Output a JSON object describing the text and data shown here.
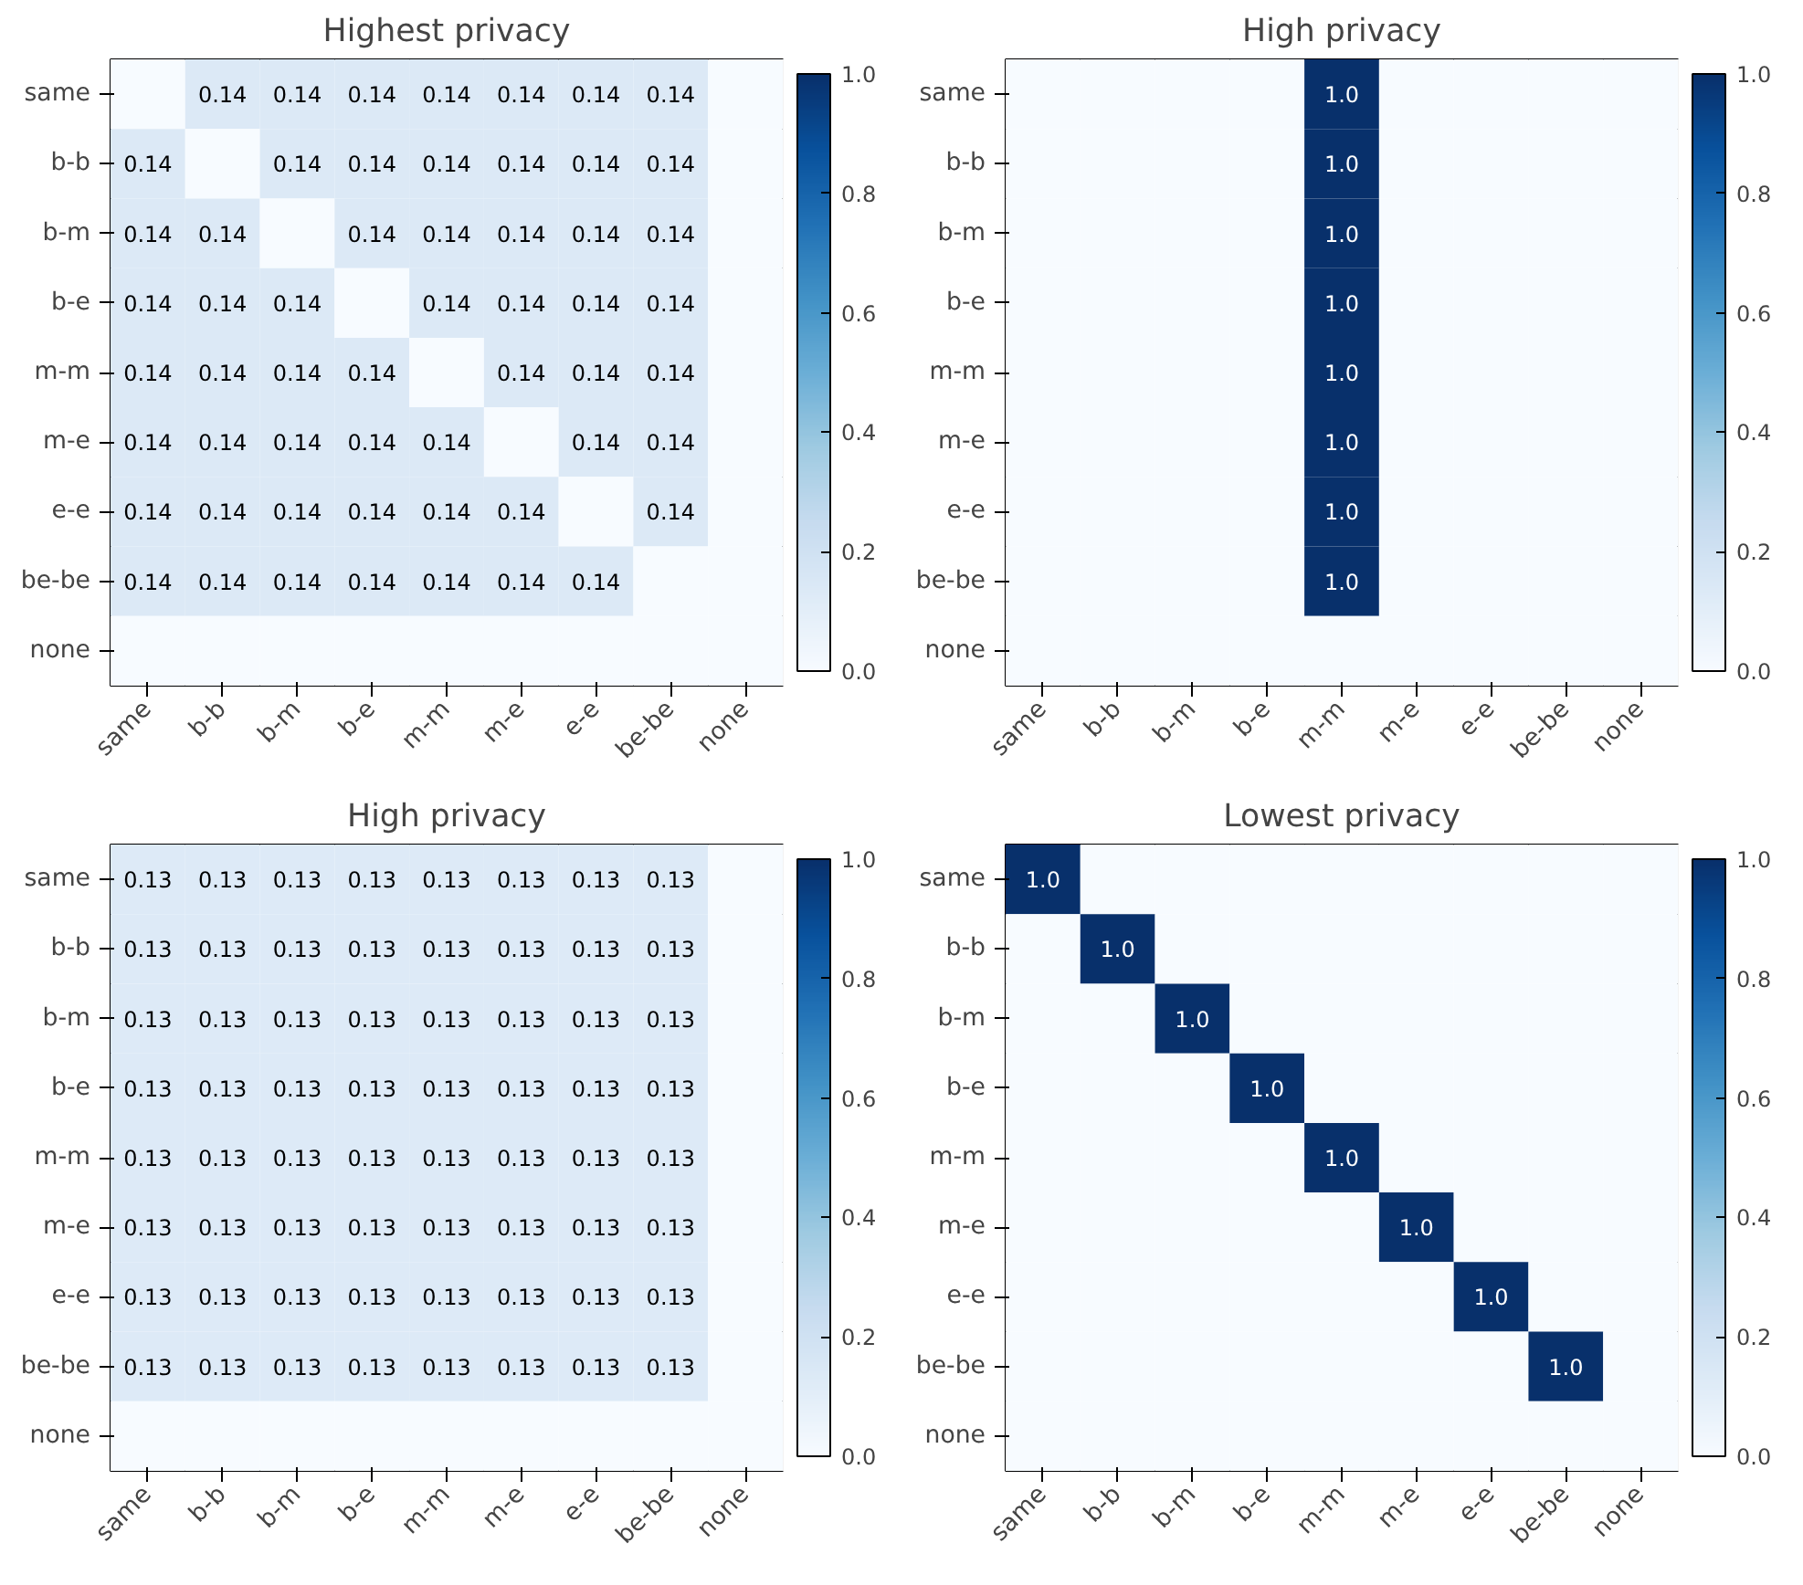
{
  "chart_data": [
    {
      "type": "heatmap",
      "title": "Highest privacy",
      "categories": [
        "same",
        "b-b",
        "b-m",
        "b-e",
        "m-m",
        "m-e",
        "e-e",
        "be-be",
        "none"
      ],
      "y_categories": [
        "same",
        "b-b",
        "b-m",
        "b-e",
        "m-m",
        "m-e",
        "e-e",
        "be-be",
        "none"
      ],
      "cells": [
        [
          0,
          0.14,
          0.14,
          0.14,
          0.14,
          0.14,
          0.14,
          0.14,
          0
        ],
        [
          0.14,
          0,
          0.14,
          0.14,
          0.14,
          0.14,
          0.14,
          0.14,
          0
        ],
        [
          0.14,
          0.14,
          0,
          0.14,
          0.14,
          0.14,
          0.14,
          0.14,
          0
        ],
        [
          0.14,
          0.14,
          0.14,
          0,
          0.14,
          0.14,
          0.14,
          0.14,
          0
        ],
        [
          0.14,
          0.14,
          0.14,
          0.14,
          0,
          0.14,
          0.14,
          0.14,
          0
        ],
        [
          0.14,
          0.14,
          0.14,
          0.14,
          0.14,
          0,
          0.14,
          0.14,
          0
        ],
        [
          0.14,
          0.14,
          0.14,
          0.14,
          0.14,
          0.14,
          0,
          0.14,
          0
        ],
        [
          0.14,
          0.14,
          0.14,
          0.14,
          0.14,
          0.14,
          0.14,
          0,
          0
        ],
        [
          0,
          0,
          0,
          0,
          0,
          0,
          0,
          0,
          0
        ]
      ],
      "cell_labels": [
        [
          null,
          "0.14",
          "0.14",
          "0.14",
          "0.14",
          "0.14",
          "0.14",
          "0.14",
          null
        ],
        [
          "0.14",
          null,
          "0.14",
          "0.14",
          "0.14",
          "0.14",
          "0.14",
          "0.14",
          null
        ],
        [
          "0.14",
          "0.14",
          null,
          "0.14",
          "0.14",
          "0.14",
          "0.14",
          "0.14",
          null
        ],
        [
          "0.14",
          "0.14",
          "0.14",
          null,
          "0.14",
          "0.14",
          "0.14",
          "0.14",
          null
        ],
        [
          "0.14",
          "0.14",
          "0.14",
          "0.14",
          null,
          "0.14",
          "0.14",
          "0.14",
          null
        ],
        [
          "0.14",
          "0.14",
          "0.14",
          "0.14",
          "0.14",
          null,
          "0.14",
          "0.14",
          null
        ],
        [
          "0.14",
          "0.14",
          "0.14",
          "0.14",
          "0.14",
          "0.14",
          null,
          "0.14",
          null
        ],
        [
          "0.14",
          "0.14",
          "0.14",
          "0.14",
          "0.14",
          "0.14",
          "0.14",
          null,
          null
        ],
        [
          null,
          null,
          null,
          null,
          null,
          null,
          null,
          null,
          null
        ]
      ],
      "clim": [
        0,
        1
      ],
      "cticks": [
        {
          "value": 0,
          "label": "0.0"
        },
        {
          "value": 0.2,
          "label": "0.2"
        },
        {
          "value": 0.4,
          "label": "0.4"
        },
        {
          "value": 0.6,
          "label": "0.6"
        },
        {
          "value": 0.8,
          "label": "0.8"
        },
        {
          "value": 1,
          "label": "1.0"
        }
      ]
    },
    {
      "type": "heatmap",
      "title": "High privacy",
      "categories": [
        "same",
        "b-b",
        "b-m",
        "b-e",
        "m-m",
        "m-e",
        "e-e",
        "be-be",
        "none"
      ],
      "y_categories": [
        "same",
        "b-b",
        "b-m",
        "b-e",
        "m-m",
        "m-e",
        "e-e",
        "be-be",
        "none"
      ],
      "cells": [
        [
          0,
          0,
          0,
          0,
          1,
          0,
          0,
          0,
          0
        ],
        [
          0,
          0,
          0,
          0,
          1,
          0,
          0,
          0,
          0
        ],
        [
          0,
          0,
          0,
          0,
          1,
          0,
          0,
          0,
          0
        ],
        [
          0,
          0,
          0,
          0,
          1,
          0,
          0,
          0,
          0
        ],
        [
          0,
          0,
          0,
          0,
          1,
          0,
          0,
          0,
          0
        ],
        [
          0,
          0,
          0,
          0,
          1,
          0,
          0,
          0,
          0
        ],
        [
          0,
          0,
          0,
          0,
          1,
          0,
          0,
          0,
          0
        ],
        [
          0,
          0,
          0,
          0,
          1,
          0,
          0,
          0,
          0
        ],
        [
          0,
          0,
          0,
          0,
          0,
          0,
          0,
          0,
          0
        ]
      ],
      "cell_labels": [
        [
          null,
          null,
          null,
          null,
          "1.0",
          null,
          null,
          null,
          null
        ],
        [
          null,
          null,
          null,
          null,
          "1.0",
          null,
          null,
          null,
          null
        ],
        [
          null,
          null,
          null,
          null,
          "1.0",
          null,
          null,
          null,
          null
        ],
        [
          null,
          null,
          null,
          null,
          "1.0",
          null,
          null,
          null,
          null
        ],
        [
          null,
          null,
          null,
          null,
          "1.0",
          null,
          null,
          null,
          null
        ],
        [
          null,
          null,
          null,
          null,
          "1.0",
          null,
          null,
          null,
          null
        ],
        [
          null,
          null,
          null,
          null,
          "1.0",
          null,
          null,
          null,
          null
        ],
        [
          null,
          null,
          null,
          null,
          "1.0",
          null,
          null,
          null,
          null
        ],
        [
          null,
          null,
          null,
          null,
          null,
          null,
          null,
          null,
          null
        ]
      ],
      "clim": [
        0,
        1
      ],
      "cticks": [
        {
          "value": 0,
          "label": "0.0"
        },
        {
          "value": 0.2,
          "label": "0.2"
        },
        {
          "value": 0.4,
          "label": "0.4"
        },
        {
          "value": 0.6,
          "label": "0.6"
        },
        {
          "value": 0.8,
          "label": "0.8"
        },
        {
          "value": 1,
          "label": "1.0"
        }
      ]
    },
    {
      "type": "heatmap",
      "title": "High privacy",
      "categories": [
        "same",
        "b-b",
        "b-m",
        "b-e",
        "m-m",
        "m-e",
        "e-e",
        "be-be",
        "none"
      ],
      "y_categories": [
        "same",
        "b-b",
        "b-m",
        "b-e",
        "m-m",
        "m-e",
        "e-e",
        "be-be",
        "none"
      ],
      "cells": [
        [
          0.13,
          0.13,
          0.13,
          0.13,
          0.13,
          0.13,
          0.13,
          0.13,
          0
        ],
        [
          0.13,
          0.13,
          0.13,
          0.13,
          0.13,
          0.13,
          0.13,
          0.13,
          0
        ],
        [
          0.13,
          0.13,
          0.13,
          0.13,
          0.13,
          0.13,
          0.13,
          0.13,
          0
        ],
        [
          0.13,
          0.13,
          0.13,
          0.13,
          0.13,
          0.13,
          0.13,
          0.13,
          0
        ],
        [
          0.13,
          0.13,
          0.13,
          0.13,
          0.13,
          0.13,
          0.13,
          0.13,
          0
        ],
        [
          0.13,
          0.13,
          0.13,
          0.13,
          0.13,
          0.13,
          0.13,
          0.13,
          0
        ],
        [
          0.13,
          0.13,
          0.13,
          0.13,
          0.13,
          0.13,
          0.13,
          0.13,
          0
        ],
        [
          0.13,
          0.13,
          0.13,
          0.13,
          0.13,
          0.13,
          0.13,
          0.13,
          0
        ],
        [
          0,
          0,
          0,
          0,
          0,
          0,
          0,
          0,
          0
        ]
      ],
      "cell_labels": [
        [
          "0.13",
          "0.13",
          "0.13",
          "0.13",
          "0.13",
          "0.13",
          "0.13",
          "0.13",
          null
        ],
        [
          "0.13",
          "0.13",
          "0.13",
          "0.13",
          "0.13",
          "0.13",
          "0.13",
          "0.13",
          null
        ],
        [
          "0.13",
          "0.13",
          "0.13",
          "0.13",
          "0.13",
          "0.13",
          "0.13",
          "0.13",
          null
        ],
        [
          "0.13",
          "0.13",
          "0.13",
          "0.13",
          "0.13",
          "0.13",
          "0.13",
          "0.13",
          null
        ],
        [
          "0.13",
          "0.13",
          "0.13",
          "0.13",
          "0.13",
          "0.13",
          "0.13",
          "0.13",
          null
        ],
        [
          "0.13",
          "0.13",
          "0.13",
          "0.13",
          "0.13",
          "0.13",
          "0.13",
          "0.13",
          null
        ],
        [
          "0.13",
          "0.13",
          "0.13",
          "0.13",
          "0.13",
          "0.13",
          "0.13",
          "0.13",
          null
        ],
        [
          "0.13",
          "0.13",
          "0.13",
          "0.13",
          "0.13",
          "0.13",
          "0.13",
          "0.13",
          null
        ],
        [
          null,
          null,
          null,
          null,
          null,
          null,
          null,
          null,
          null
        ]
      ],
      "clim": [
        0,
        1
      ],
      "cticks": [
        {
          "value": 0,
          "label": "0.0"
        },
        {
          "value": 0.2,
          "label": "0.2"
        },
        {
          "value": 0.4,
          "label": "0.4"
        },
        {
          "value": 0.6,
          "label": "0.6"
        },
        {
          "value": 0.8,
          "label": "0.8"
        },
        {
          "value": 1,
          "label": "1.0"
        }
      ]
    },
    {
      "type": "heatmap",
      "title": "Lowest privacy",
      "categories": [
        "same",
        "b-b",
        "b-m",
        "b-e",
        "m-m",
        "m-e",
        "e-e",
        "be-be",
        "none"
      ],
      "y_categories": [
        "same",
        "b-b",
        "b-m",
        "b-e",
        "m-m",
        "m-e",
        "e-e",
        "be-be",
        "none"
      ],
      "cells": [
        [
          1,
          0,
          0,
          0,
          0,
          0,
          0,
          0,
          0
        ],
        [
          0,
          1,
          0,
          0,
          0,
          0,
          0,
          0,
          0
        ],
        [
          0,
          0,
          1,
          0,
          0,
          0,
          0,
          0,
          0
        ],
        [
          0,
          0,
          0,
          1,
          0,
          0,
          0,
          0,
          0
        ],
        [
          0,
          0,
          0,
          0,
          1,
          0,
          0,
          0,
          0
        ],
        [
          0,
          0,
          0,
          0,
          0,
          1,
          0,
          0,
          0
        ],
        [
          0,
          0,
          0,
          0,
          0,
          0,
          1,
          0,
          0
        ],
        [
          0,
          0,
          0,
          0,
          0,
          0,
          0,
          1,
          0
        ],
        [
          0,
          0,
          0,
          0,
          0,
          0,
          0,
          0,
          0
        ]
      ],
      "cell_labels": [
        [
          "1.0",
          null,
          null,
          null,
          null,
          null,
          null,
          null,
          null
        ],
        [
          null,
          "1.0",
          null,
          null,
          null,
          null,
          null,
          null,
          null
        ],
        [
          null,
          null,
          "1.0",
          null,
          null,
          null,
          null,
          null,
          null
        ],
        [
          null,
          null,
          null,
          "1.0",
          null,
          null,
          null,
          null,
          null
        ],
        [
          null,
          null,
          null,
          null,
          "1.0",
          null,
          null,
          null,
          null
        ],
        [
          null,
          null,
          null,
          null,
          null,
          "1.0",
          null,
          null,
          null
        ],
        [
          null,
          null,
          null,
          null,
          null,
          null,
          "1.0",
          null,
          null
        ],
        [
          null,
          null,
          null,
          null,
          null,
          null,
          null,
          "1.0",
          null
        ],
        [
          null,
          null,
          null,
          null,
          null,
          null,
          null,
          null,
          null
        ]
      ],
      "clim": [
        0,
        1
      ],
      "cticks": [
        {
          "value": 0,
          "label": "0.0"
        },
        {
          "value": 0.2,
          "label": "0.2"
        },
        {
          "value": 0.4,
          "label": "0.4"
        },
        {
          "value": 0.6,
          "label": "0.6"
        },
        {
          "value": 0.8,
          "label": "0.8"
        },
        {
          "value": 1,
          "label": "1.0"
        }
      ]
    }
  ]
}
